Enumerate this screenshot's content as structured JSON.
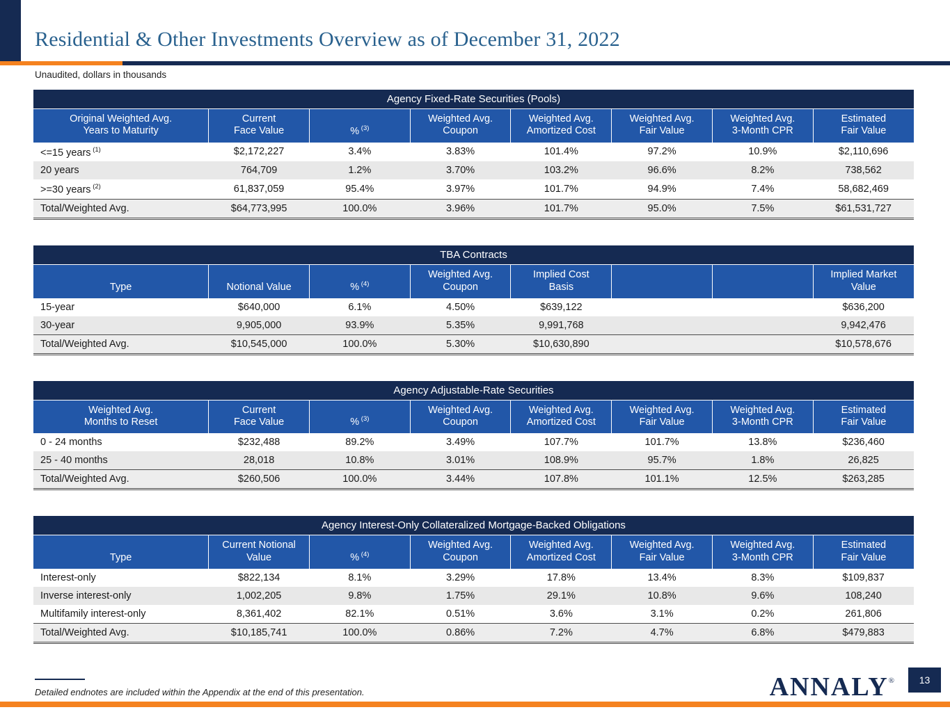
{
  "header": {
    "title": "Residential & Other Investments Overview as of December 31, 2022",
    "subtitle": "Unaudited, dollars in thousands"
  },
  "footer": {
    "footnote": "Detailed endnotes are included within the Appendix at the end of this presentation.",
    "logo_text": "ANNALY",
    "logo_reg": "®",
    "page_number": "13"
  },
  "colors": {
    "navy": "#152a52",
    "blue": "#2257a8",
    "orange": "#f5821f",
    "rowalt": "#e8e8e8",
    "totalbg": "#ededed",
    "titleblue": "#29618e",
    "border": "#4a4a4a",
    "text": "#1a1a1a"
  },
  "tables": [
    {
      "name": "agency-fixed-rate-securities-pools",
      "title": "Agency Fixed-Rate Securities (Pools)",
      "columns": [
        {
          "lines": [
            "Original Weighted Avg.",
            "Years to Maturity"
          ]
        },
        {
          "lines": [
            "Current",
            "Face Value"
          ]
        },
        {
          "lines": [
            "%"
          ],
          "sup": "(3)"
        },
        {
          "lines": [
            "Weighted Avg.",
            "Coupon"
          ]
        },
        {
          "lines": [
            "Weighted Avg.",
            "Amortized Cost"
          ]
        },
        {
          "lines": [
            "Weighted Avg.",
            "Fair Value"
          ]
        },
        {
          "lines": [
            "Weighted Avg.",
            "3-Month CPR"
          ]
        },
        {
          "lines": [
            "Estimated",
            "Fair Value"
          ]
        }
      ],
      "rows": [
        {
          "label": "<=15 years",
          "sup": "(1)",
          "values": [
            "$2,172,227",
            "3.4%",
            "3.83%",
            "101.4%",
            "97.2%",
            "10.9%",
            "$2,110,696"
          ]
        },
        {
          "label": "20 years",
          "values": [
            "764,709",
            "1.2%",
            "3.70%",
            "103.2%",
            "96.6%",
            "8.2%",
            "738,562"
          ]
        },
        {
          "label": ">=30 years",
          "sup": "(2)",
          "values": [
            "61,837,059",
            "95.4%",
            "3.97%",
            "101.7%",
            "94.9%",
            "7.4%",
            "58,682,469"
          ]
        }
      ],
      "total": {
        "label": "Total/Weighted Avg.",
        "values": [
          "$64,773,995",
          "100.0%",
          "3.96%",
          "101.7%",
          "95.0%",
          "7.5%",
          "$61,531,727"
        ]
      }
    },
    {
      "name": "tba-contracts",
      "title": "TBA Contracts",
      "columns": [
        {
          "lines": [
            "Type"
          ]
        },
        {
          "lines": [
            "Notional Value"
          ]
        },
        {
          "lines": [
            "%"
          ],
          "sup": "(4)"
        },
        {
          "lines": [
            "Weighted Avg.",
            "Coupon"
          ]
        },
        {
          "lines": [
            "Implied Cost",
            "Basis"
          ]
        },
        {
          "lines": []
        },
        {
          "lines": []
        },
        {
          "lines": [
            "Implied Market",
            "Value"
          ]
        }
      ],
      "rows": [
        {
          "label": "15-year",
          "values": [
            "$640,000",
            "6.1%",
            "4.50%",
            "$639,122",
            "",
            "",
            "$636,200"
          ]
        },
        {
          "label": "30-year",
          "values": [
            "9,905,000",
            "93.9%",
            "5.35%",
            "9,991,768",
            "",
            "",
            "9,942,476"
          ]
        }
      ],
      "total": {
        "label": "Total/Weighted Avg.",
        "values": [
          "$10,545,000",
          "100.0%",
          "5.30%",
          "$10,630,890",
          "",
          "",
          "$10,578,676"
        ]
      }
    },
    {
      "name": "agency-adjustable-rate-securities",
      "title": "Agency Adjustable-Rate Securities",
      "columns": [
        {
          "lines": [
            "Weighted Avg.",
            "Months to Reset"
          ]
        },
        {
          "lines": [
            "Current",
            "Face Value"
          ]
        },
        {
          "lines": [
            "%"
          ],
          "sup": "(3)"
        },
        {
          "lines": [
            "Weighted Avg.",
            "Coupon"
          ]
        },
        {
          "lines": [
            "Weighted Avg.",
            "Amortized Cost"
          ]
        },
        {
          "lines": [
            "Weighted Avg.",
            "Fair Value"
          ]
        },
        {
          "lines": [
            "Weighted Avg.",
            "3-Month CPR"
          ]
        },
        {
          "lines": [
            "Estimated",
            "Fair Value"
          ]
        }
      ],
      "rows": [
        {
          "label": "0 - 24 months",
          "values": [
            "$232,488",
            "89.2%",
            "3.49%",
            "107.7%",
            "101.7%",
            "13.8%",
            "$236,460"
          ]
        },
        {
          "label": "25 - 40 months",
          "values": [
            "28,018",
            "10.8%",
            "3.01%",
            "108.9%",
            "95.7%",
            "1.8%",
            "26,825"
          ]
        }
      ],
      "total": {
        "label": "Total/Weighted Avg.",
        "values": [
          "$260,506",
          "100.0%",
          "3.44%",
          "107.8%",
          "101.1%",
          "12.5%",
          "$263,285"
        ]
      }
    },
    {
      "name": "agency-interest-only-cmbo",
      "title": "Agency Interest-Only Collateralized Mortgage-Backed Obligations",
      "columns": [
        {
          "lines": [
            "Type"
          ]
        },
        {
          "lines": [
            "Current Notional",
            "Value"
          ]
        },
        {
          "lines": [
            "%"
          ],
          "sup": "(4)"
        },
        {
          "lines": [
            "Weighted Avg.",
            "Coupon"
          ]
        },
        {
          "lines": [
            "Weighted Avg.",
            "Amortized Cost"
          ]
        },
        {
          "lines": [
            "Weighted Avg.",
            "Fair Value"
          ]
        },
        {
          "lines": [
            "Weighted Avg.",
            "3-Month CPR"
          ]
        },
        {
          "lines": [
            "Estimated",
            "Fair Value"
          ]
        }
      ],
      "rows": [
        {
          "label": "Interest-only",
          "values": [
            "$822,134",
            "8.1%",
            "3.29%",
            "17.8%",
            "13.4%",
            "8.3%",
            "$109,837"
          ]
        },
        {
          "label": "Inverse interest-only",
          "values": [
            "1,002,205",
            "9.8%",
            "1.75%",
            "29.1%",
            "10.8%",
            "9.6%",
            "108,240"
          ]
        },
        {
          "label": "Multifamily interest-only",
          "values": [
            "8,361,402",
            "82.1%",
            "0.51%",
            "3.6%",
            "3.1%",
            "0.2%",
            "261,806"
          ]
        }
      ],
      "total": {
        "label": "Total/Weighted Avg.",
        "values": [
          "$10,185,741",
          "100.0%",
          "0.86%",
          "7.2%",
          "4.7%",
          "6.8%",
          "$479,883"
        ]
      }
    }
  ]
}
